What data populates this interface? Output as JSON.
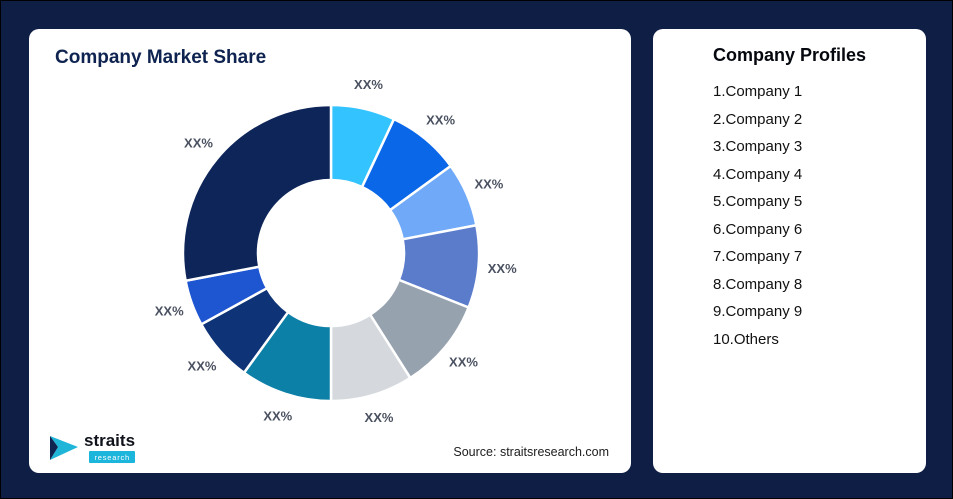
{
  "page": {
    "background_color": "#0E1E44"
  },
  "left_card": {
    "title": "Company Market Share",
    "source": "Source: straitsresearch.com",
    "logo": {
      "brand": "straits",
      "sub": "research",
      "accent_color": "#1CB5DB"
    }
  },
  "right_card": {
    "title": "Company Profiles",
    "items": [
      "1.Company 1",
      "2.Company 2",
      "3.Company 3",
      "4.Company 4",
      "5.Company 5",
      "6.Company 6",
      "7.Company 7",
      "8.Company 8",
      "9.Company 9",
      "10.Others"
    ]
  },
  "chart_data": {
    "type": "pie",
    "subtype": "donut",
    "title": "Company Market Share",
    "legend_position": "none",
    "start_angle_deg": 0,
    "inner_radius_ratio": 0.49,
    "segments": [
      {
        "name": "segment-1",
        "label": "XX%",
        "value": 7,
        "color": "#33C3FF"
      },
      {
        "name": "segment-2",
        "label": "XX%",
        "value": 8,
        "color": "#0A67E8"
      },
      {
        "name": "segment-3",
        "label": "XX%",
        "value": 7,
        "color": "#6FA9F7"
      },
      {
        "name": "segment-4",
        "label": "XX%",
        "value": 9,
        "color": "#5B7CCB"
      },
      {
        "name": "segment-5",
        "label": "XX%",
        "value": 10,
        "color": "#97A2AF"
      },
      {
        "name": "segment-6",
        "label": "XX%",
        "value": 9,
        "color": "#D5D9DD"
      },
      {
        "name": "segment-7",
        "label": "XX%",
        "value": 10,
        "color": "#0C80A6"
      },
      {
        "name": "segment-8",
        "label": "XX%",
        "value": 7,
        "color": "#0E3377"
      },
      {
        "name": "segment-9",
        "label": "XX%",
        "value": 5,
        "color": "#1E55D0"
      },
      {
        "name": "segment-10",
        "label": "XX%",
        "value": 28,
        "color": "#0D2559"
      }
    ]
  }
}
